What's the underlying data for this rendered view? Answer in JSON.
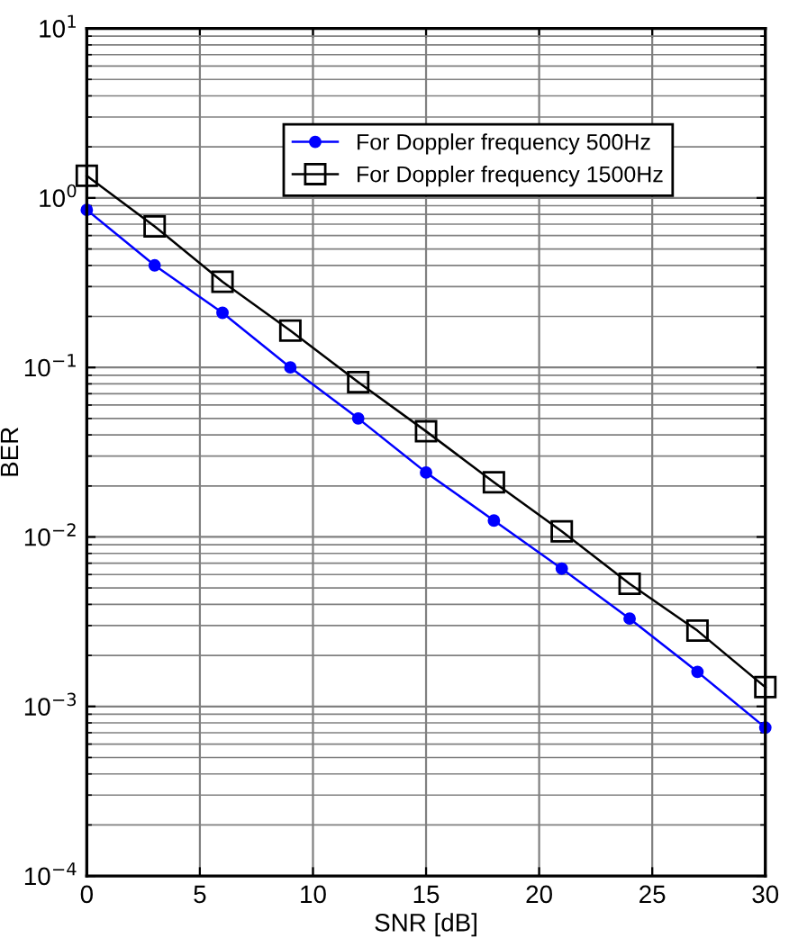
{
  "chart_data": {
    "type": "line",
    "xlabel": "SNR [dB]",
    "ylabel": "BER",
    "log": "y",
    "grid": true,
    "legend": "top right",
    "x": [
      0,
      3,
      6,
      9,
      12,
      15,
      18,
      21,
      24,
      27,
      30
    ],
    "xlim": [
      0,
      30
    ],
    "xticks": [
      0,
      5,
      10,
      15,
      20,
      25,
      30
    ],
    "ylim": [
      0.0001,
      10
    ],
    "yticks": [
      {
        "value": 0.0001,
        "label": "10$^{−4}$"
      },
      {
        "value": 0.001,
        "label": "10$^{−3}$"
      },
      {
        "value": 0.01,
        "label": "10$^{−2}$"
      },
      {
        "value": 0.1,
        "label": "10$^{−1}$"
      },
      {
        "value": 1,
        "label": "10$^{0}$"
      },
      {
        "value": 10,
        "label": "10$^{1}$"
      }
    ],
    "series": [
      {
        "name": "For Doppler frequency 500Hz",
        "color": "#0000ff",
        "marker": "circle",
        "values": [
          0.85,
          0.4,
          0.21,
          0.1,
          0.05,
          0.024,
          0.0125,
          0.0065,
          0.0033,
          0.0016,
          0.00075
        ]
      },
      {
        "name": "For Doppler frequency 1500Hz",
        "color": "#000000",
        "marker": "square",
        "values": [
          1.35,
          0.68,
          0.32,
          0.165,
          0.082,
          0.042,
          0.021,
          0.0108,
          0.0053,
          0.0028,
          0.0013
        ]
      }
    ]
  }
}
